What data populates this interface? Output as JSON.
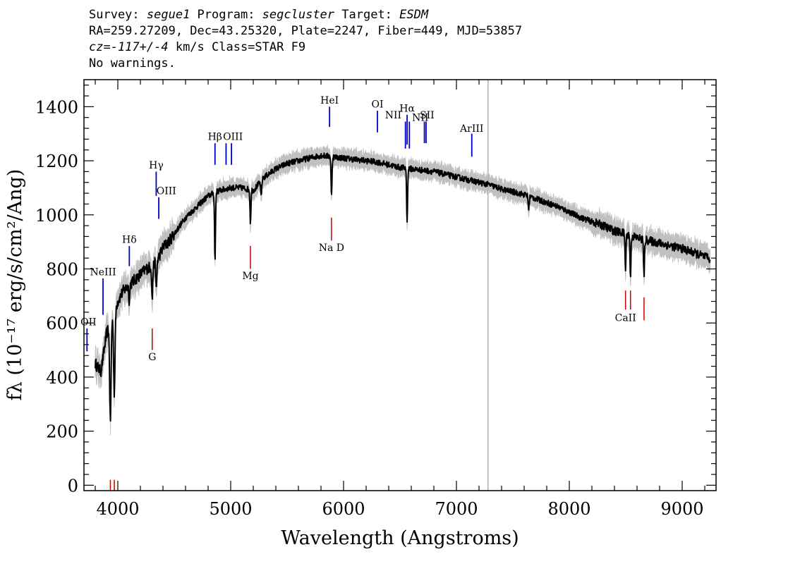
{
  "header": {
    "line1": {
      "survey_label": "Survey: ",
      "survey": "segue1",
      "program_label": " Program: ",
      "program": "segcluster",
      "target_label": " Target: ",
      "target": "ESDM"
    },
    "line2": "RA=259.27209, Dec=43.25320, Plate=2247, Fiber=449, MJD=53857",
    "line3": {
      "cz": "cz=-117+/-4",
      "rest": " km/s Class=STAR F9"
    },
    "line4": "No warnings."
  },
  "chart_data": {
    "type": "line",
    "xlabel": "Wavelength (Angstroms)",
    "ylabel": "fλ (10⁻¹⁷ erg/s/cm²/Ang)",
    "xlim": [
      3700,
      9300
    ],
    "ylim": [
      -20,
      1500
    ],
    "xticks": [
      4000,
      5000,
      6000,
      7000,
      8000,
      9000
    ],
    "yticks": [
      0,
      200,
      400,
      600,
      800,
      1000,
      1200,
      1400
    ],
    "grid": false,
    "vertical_marker_x": 7280,
    "colors": {
      "flux": "#000000",
      "error": "#c0c0c0",
      "emission": "#0000cc",
      "absorption": "#cc0000"
    },
    "continuum": {
      "x": [
        3800,
        3850,
        3900,
        3950,
        4000,
        4050,
        4100,
        4150,
        4200,
        4250,
        4300,
        4350,
        4400,
        4450,
        4500,
        4600,
        4700,
        4800,
        4900,
        5000,
        5100,
        5200,
        5300,
        5400,
        5500,
        5600,
        5700,
        5800,
        5900,
        6000,
        6100,
        6200,
        6300,
        6400,
        6500,
        6600,
        6700,
        6800,
        6900,
        7000,
        7100,
        7200,
        7300,
        7400,
        7500,
        7600,
        7700,
        7800,
        7900,
        8000,
        8100,
        8200,
        8300,
        8400,
        8500,
        8600,
        8700,
        8800,
        8900,
        9000,
        9100,
        9200,
        9250
      ],
      "y": [
        450,
        420,
        560,
        620,
        680,
        720,
        740,
        760,
        780,
        800,
        810,
        830,
        880,
        900,
        930,
        990,
        1030,
        1070,
        1090,
        1100,
        1100,
        1090,
        1140,
        1170,
        1190,
        1200,
        1210,
        1220,
        1215,
        1210,
        1205,
        1200,
        1195,
        1185,
        1175,
        1170,
        1165,
        1160,
        1150,
        1140,
        1130,
        1120,
        1110,
        1095,
        1085,
        1075,
        1060,
        1045,
        1030,
        1010,
        990,
        975,
        960,
        940,
        930,
        915,
        905,
        895,
        885,
        875,
        860,
        845,
        835
      ]
    },
    "absorption_features": [
      {
        "x": 3934,
        "depth": 360
      },
      {
        "x": 3969,
        "depth": 300
      },
      {
        "x": 4102,
        "depth": 60
      },
      {
        "x": 4305,
        "depth": 130
      },
      {
        "x": 4341,
        "depth": 110
      },
      {
        "x": 4861,
        "depth": 250
      },
      {
        "x": 5175,
        "depth": 120
      },
      {
        "x": 5270,
        "depth": 60
      },
      {
        "x": 5893,
        "depth": 150
      },
      {
        "x": 6563,
        "depth": 200
      },
      {
        "x": 7640,
        "depth": 50
      },
      {
        "x": 8498,
        "depth": 130
      },
      {
        "x": 8542,
        "depth": 150
      },
      {
        "x": 8662,
        "depth": 140
      }
    ],
    "emission_lines": [
      {
        "label": "NeIII",
        "x": 3869,
        "ytop": 765,
        "ybot": 630,
        "label_y": 790,
        "lx": 3869
      },
      {
        "label": "Hδ",
        "x": 4102,
        "ytop": 885,
        "ybot": 810,
        "label_y": 910,
        "lx": 4102
      },
      {
        "label": "Hγ",
        "x": 4340,
        "ytop": 1160,
        "ybot": 1070,
        "label_y": 1185,
        "lx": 4340
      },
      {
        "label": "OIII",
        "x": 4363,
        "ytop": 1065,
        "ybot": 985,
        "label_y": 1090,
        "lx": 4430
      },
      {
        "label": "Hβ",
        "x": 4861,
        "ytop": 1265,
        "ybot": 1185,
        "label_y": 1290,
        "lx": 4861
      },
      {
        "label": "OIII",
        "x": 4959,
        "ytop": 1265,
        "ybot": 1185,
        "label_y": 1290,
        "lx": 5020
      },
      {
        "label": "OIII",
        "x": 5007,
        "ytop": 1265,
        "ybot": 1185,
        "label_y": 1290,
        "lx": ""
      },
      {
        "label": "HeI",
        "x": 5876,
        "ytop": 1400,
        "ybot": 1325,
        "label_y": 1425,
        "lx": 5876
      },
      {
        "label": "OI",
        "x": 6300,
        "ytop": 1385,
        "ybot": 1305,
        "label_y": 1410,
        "lx": 6300
      },
      {
        "label": "NII",
        "x": 6548,
        "ytop": 1345,
        "ybot": 1245,
        "label_y": 1370,
        "lx": 6440
      },
      {
        "label": "Hα",
        "x": 6563,
        "ytop": 1370,
        "ybot": 1260,
        "label_y": 1395,
        "lx": 6563
      },
      {
        "label": "NII",
        "x": 6583,
        "ytop": 1345,
        "ybot": 1245,
        "label_y": "",
        "lx": ""
      },
      {
        "label": "NII",
        "x": 6716,
        "ytop": 1345,
        "ybot": 1265,
        "label_y": 1360,
        "lx": 6680
      },
      {
        "label": "SII",
        "x": 6731,
        "ytop": 1345,
        "ybot": 1265,
        "label_y": 1370,
        "lx": 6740
      },
      {
        "label": "ArIII",
        "x": 7136,
        "ytop": 1300,
        "ybot": 1215,
        "label_y": 1320,
        "lx": 7136
      },
      {
        "label": "OII",
        "x": 3727,
        "ytop": 580,
        "ybot": 495,
        "label_y": 605,
        "lx": 3740
      }
    ],
    "absorption_lines": [
      {
        "label": "",
        "x": 3934,
        "ytop": 20,
        "ybot": -20
      },
      {
        "label": "",
        "x": 3969,
        "ytop": 20,
        "ybot": -20
      },
      {
        "label": "G",
        "x": 4305,
        "ytop": 580,
        "ybot": 500,
        "label_y": 475
      },
      {
        "label": "Mg",
        "x": 5175,
        "ytop": 885,
        "ybot": 800,
        "label_y": 775
      },
      {
        "label": "Na D",
        "x": 5893,
        "ytop": 990,
        "ybot": 905,
        "label_y": 880
      },
      {
        "label": "CaII",
        "x": 8498,
        "ytop": 720,
        "ybot": 650,
        "label_y": 620
      },
      {
        "label": "",
        "x": 8542,
        "ytop": 720,
        "ybot": 650
      },
      {
        "label": "",
        "x": 8662,
        "ytop": 695,
        "ybot": 610
      }
    ]
  }
}
